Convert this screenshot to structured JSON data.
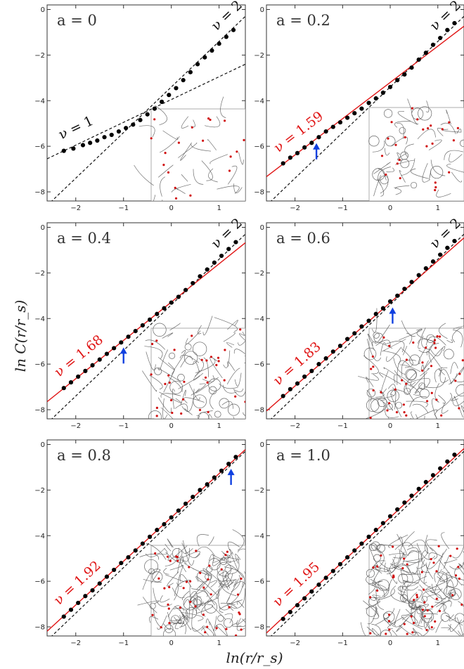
{
  "xlabel": "ln(r/r_s)",
  "ylabel": "ln C(r/r_s)",
  "chart_data": [
    {
      "type": "scatter",
      "title": "a = 0",
      "xlim": [
        -2.6,
        1.55
      ],
      "ylim": [
        -8.4,
        0.2
      ],
      "xticks": [
        -2,
        -1,
        0,
        1
      ],
      "yticks": [
        -8,
        -6,
        -4,
        -2,
        0
      ],
      "x": [
        -2.25,
        -2.05,
        -1.85,
        -1.7,
        -1.55,
        -1.4,
        -1.25,
        -1.1,
        -0.95,
        -0.8,
        -0.65,
        -0.5,
        -0.35,
        -0.2,
        -0.05,
        0.1,
        0.25,
        0.4,
        0.55,
        0.7,
        0.85,
        1.0,
        1.15,
        1.3
      ],
      "y": [
        -6.2,
        -6.1,
        -5.95,
        -5.85,
        -5.75,
        -5.6,
        -5.5,
        -5.35,
        -5.2,
        -5.05,
        -4.85,
        -4.6,
        -4.35,
        -4.05,
        -3.75,
        -3.45,
        -3.1,
        -2.75,
        -2.4,
        -2.1,
        -1.8,
        -1.5,
        -1.2,
        -0.9
      ],
      "guides": [
        {
          "label": "ν = 1",
          "slope": 1,
          "intercept": -3.95
        },
        {
          "label": "ν = 2",
          "slope": 2,
          "intercept": -3.4
        }
      ],
      "fit": null,
      "arrow": null,
      "inset_density": 28
    },
    {
      "type": "scatter",
      "title": "a = 0.2",
      "xlim": [
        -2.6,
        1.55
      ],
      "ylim": [
        -8.4,
        0.2
      ],
      "xticks": [
        -2,
        -1,
        0,
        1
      ],
      "yticks": [
        -8,
        -6,
        -4,
        -2,
        0
      ],
      "x": [
        -2.25,
        -2.1,
        -1.95,
        -1.8,
        -1.65,
        -1.5,
        -1.35,
        -1.2,
        -1.05,
        -0.9,
        -0.75,
        -0.6,
        -0.45,
        -0.3,
        -0.15,
        0.0,
        0.15,
        0.3,
        0.45,
        0.6,
        0.75,
        0.9,
        1.05,
        1.2,
        1.35
      ],
      "y": [
        -6.75,
        -6.5,
        -6.3,
        -6.05,
        -5.85,
        -5.6,
        -5.35,
        -5.15,
        -4.95,
        -4.75,
        -4.55,
        -4.35,
        -4.1,
        -3.9,
        -3.65,
        -3.4,
        -3.1,
        -2.85,
        -2.55,
        -2.2,
        -1.9,
        -1.55,
        -1.25,
        -0.9,
        -0.6
      ],
      "guides": [
        {
          "label": "ν = 2",
          "slope": 2,
          "intercept": -3.4
        }
      ],
      "fit": {
        "label": "ν = 1.59",
        "slope": 1.59,
        "intercept": -3.2
      },
      "arrow": {
        "x": -1.55,
        "y": -5.65
      },
      "inset_density": 40
    },
    {
      "type": "scatter",
      "title": "a = 0.4",
      "xlim": [
        -2.6,
        1.55
      ],
      "ylim": [
        -8.4,
        0.2
      ],
      "xticks": [
        -2,
        -1,
        0,
        1
      ],
      "yticks": [
        -8,
        -6,
        -4,
        -2,
        0
      ],
      "x": [
        -2.25,
        -2.1,
        -1.95,
        -1.8,
        -1.65,
        -1.5,
        -1.35,
        -1.2,
        -1.05,
        -0.9,
        -0.75,
        -0.6,
        -0.45,
        -0.3,
        -0.15,
        0.0,
        0.15,
        0.3,
        0.45,
        0.6,
        0.75,
        0.9,
        1.05,
        1.2,
        1.35
      ],
      "y": [
        -7.05,
        -6.8,
        -6.55,
        -6.3,
        -6.05,
        -5.8,
        -5.55,
        -5.3,
        -5.05,
        -4.8,
        -4.55,
        -4.3,
        -4.05,
        -3.8,
        -3.55,
        -3.3,
        -3.05,
        -2.75,
        -2.45,
        -2.15,
        -1.85,
        -1.55,
        -1.25,
        -0.95,
        -0.65
      ],
      "guides": [
        {
          "label": "ν = 2",
          "slope": 2,
          "intercept": -3.4
        }
      ],
      "fit": {
        "label": "ν = 1.68",
        "slope": 1.68,
        "intercept": -3.28
      },
      "arrow": {
        "x": -1.0,
        "y": -5.05
      },
      "inset_density": 65
    },
    {
      "type": "scatter",
      "title": "a = 0.6",
      "xlim": [
        -2.6,
        1.55
      ],
      "ylim": [
        -8.4,
        0.2
      ],
      "xticks": [
        -2,
        -1,
        0,
        1
      ],
      "yticks": [
        -8,
        -6,
        -4,
        -2,
        0
      ],
      "x": [
        -2.25,
        -2.1,
        -1.95,
        -1.8,
        -1.65,
        -1.5,
        -1.35,
        -1.2,
        -1.05,
        -0.9,
        -0.75,
        -0.6,
        -0.45,
        -0.3,
        -0.15,
        0.0,
        0.15,
        0.3,
        0.45,
        0.6,
        0.75,
        0.9,
        1.05,
        1.2,
        1.35
      ],
      "y": [
        -7.4,
        -7.1,
        -6.85,
        -6.55,
        -6.3,
        -6.0,
        -5.75,
        -5.45,
        -5.2,
        -4.9,
        -4.65,
        -4.35,
        -4.1,
        -3.8,
        -3.55,
        -3.25,
        -3.0,
        -2.7,
        -2.4,
        -2.1,
        -1.8,
        -1.5,
        -1.2,
        -0.9,
        -0.6
      ],
      "guides": [
        {
          "label": "ν = 2",
          "slope": 2,
          "intercept": -3.4
        }
      ],
      "fit": {
        "label": "ν = 1.83",
        "slope": 1.83,
        "intercept": -3.3
      },
      "arrow": {
        "x": 0.05,
        "y": -3.3
      },
      "inset_density": 95
    },
    {
      "type": "scatter",
      "title": "a = 0.8",
      "xlim": [
        -2.6,
        1.55
      ],
      "ylim": [
        -8.4,
        0.2
      ],
      "xticks": [
        -2,
        -1,
        0,
        1
      ],
      "yticks": [
        -8,
        -6,
        -4,
        -2,
        0
      ],
      "x": [
        -2.25,
        -2.1,
        -1.95,
        -1.8,
        -1.65,
        -1.5,
        -1.35,
        -1.2,
        -1.05,
        -0.9,
        -0.75,
        -0.6,
        -0.45,
        -0.3,
        -0.15,
        0.0,
        0.15,
        0.3,
        0.45,
        0.6,
        0.75,
        0.9,
        1.05,
        1.2,
        1.35
      ],
      "y": [
        -7.55,
        -7.25,
        -6.95,
        -6.65,
        -6.4,
        -6.1,
        -5.8,
        -5.5,
        -5.2,
        -4.95,
        -4.65,
        -4.35,
        -4.05,
        -3.75,
        -3.5,
        -3.2,
        -2.9,
        -2.6,
        -2.3,
        -2.0,
        -1.75,
        -1.45,
        -1.15,
        -0.85,
        -0.55
      ],
      "guides": [
        {
          "label": "",
          "slope": 2,
          "intercept": -3.4
        }
      ],
      "fit": {
        "label": "ν = 1.92",
        "slope": 1.92,
        "intercept": -3.2
      },
      "arrow": {
        "x": 1.25,
        "y": -0.85
      },
      "inset_density": 125
    },
    {
      "type": "scatter",
      "title": "a = 1.0",
      "xlim": [
        -2.6,
        1.55
      ],
      "ylim": [
        -8.4,
        0.2
      ],
      "xticks": [
        -2,
        -1,
        0,
        1
      ],
      "yticks": [
        -8,
        -6,
        -4,
        -2,
        0
      ],
      "x": [
        -2.25,
        -2.1,
        -1.95,
        -1.8,
        -1.65,
        -1.5,
        -1.35,
        -1.2,
        -1.05,
        -0.9,
        -0.75,
        -0.6,
        -0.45,
        -0.3,
        -0.15,
        0.0,
        0.15,
        0.3,
        0.45,
        0.6,
        0.75,
        0.9,
        1.05,
        1.2,
        1.35
      ],
      "y": [
        -7.65,
        -7.35,
        -7.05,
        -6.75,
        -6.45,
        -6.15,
        -5.85,
        -5.55,
        -5.25,
        -4.95,
        -4.65,
        -4.35,
        -4.05,
        -3.75,
        -3.45,
        -3.15,
        -2.85,
        -2.55,
        -2.25,
        -1.95,
        -1.65,
        -1.35,
        -1.05,
        -0.75,
        -0.45
      ],
      "guides": [
        {
          "label": "",
          "slope": 2,
          "intercept": -3.4
        }
      ],
      "fit": {
        "label": "ν = 1.95",
        "slope": 1.95,
        "intercept": -3.2
      },
      "arrow": null,
      "inset_density": 150
    }
  ]
}
